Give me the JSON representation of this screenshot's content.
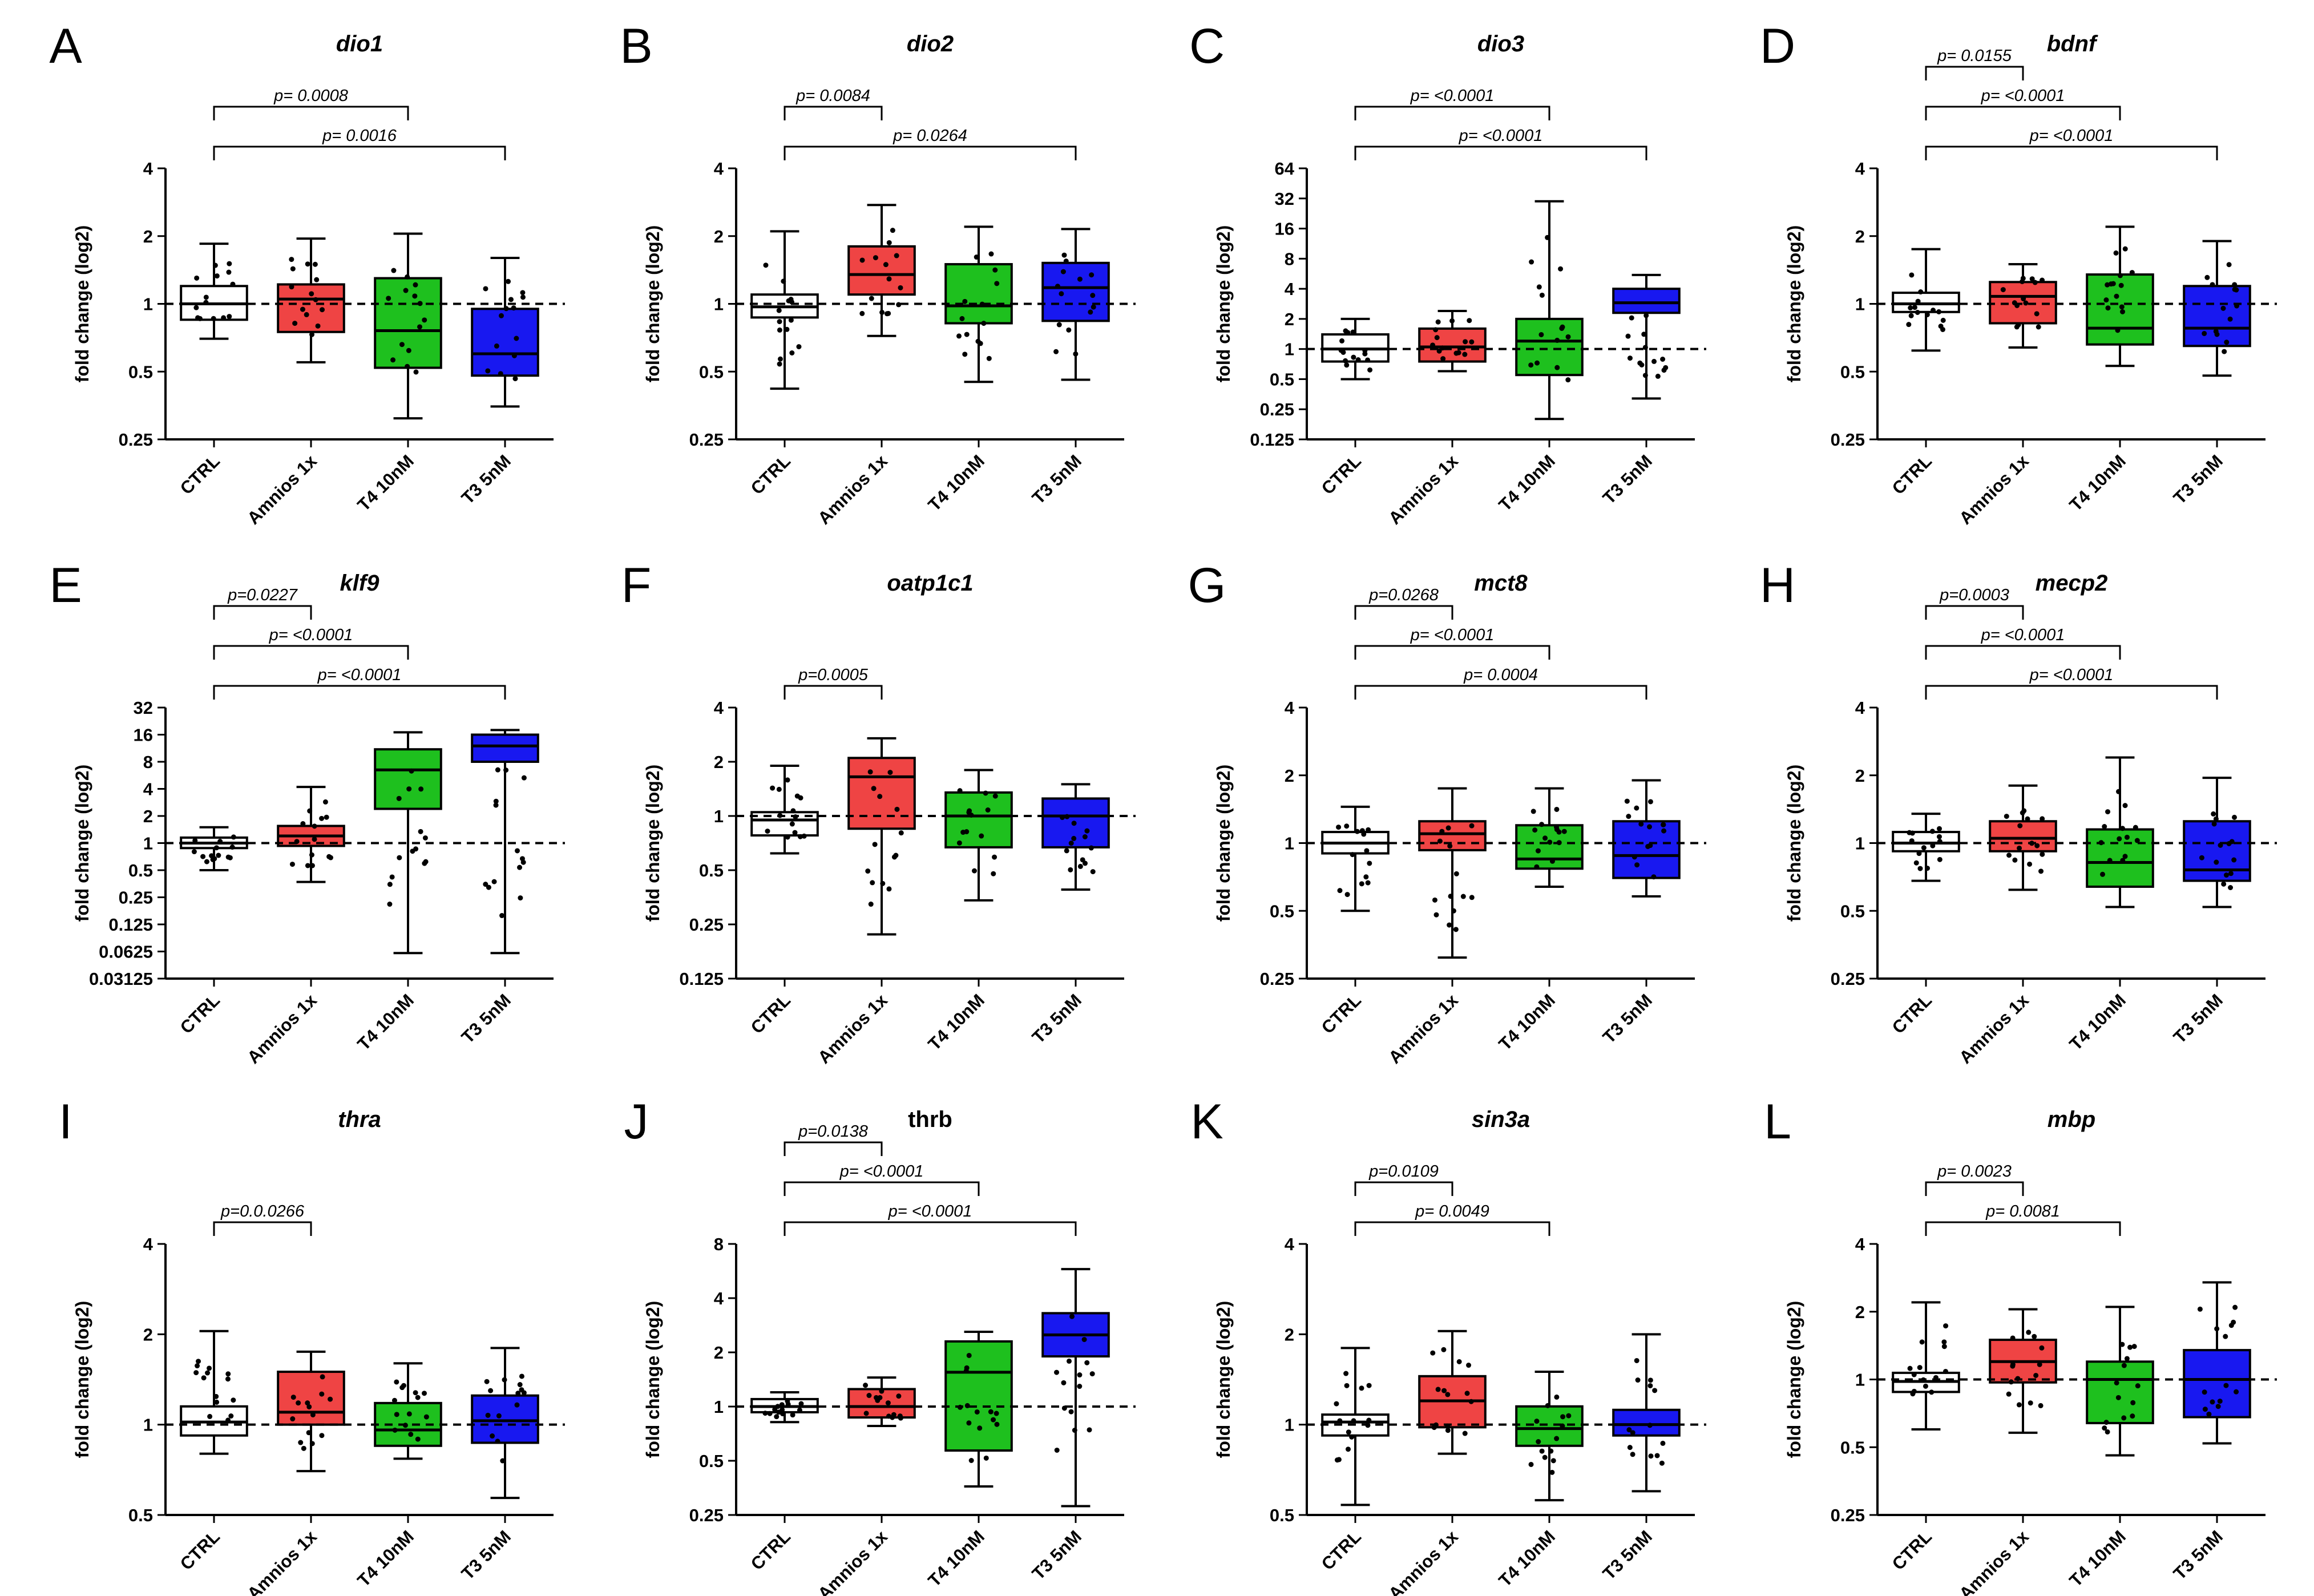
{
  "figure": {
    "groups": [
      "CTRL",
      "Amnios 1x",
      "T4 10nM",
      "T3 5nM"
    ],
    "colors": [
      "#ffffff",
      "#ef4444",
      "#1ec01e",
      "#1818f0"
    ],
    "ylabel": "fold change (log2)"
  },
  "chart_data": [
    {
      "letter": "A",
      "title": "dio1",
      "italic": true,
      "type": "box",
      "ylabel": "fold change (log2)",
      "yscale": "log2",
      "ylim": [
        0.25,
        4
      ],
      "yticks": [
        0.25,
        0.5,
        1,
        2,
        4
      ],
      "ytick_labels": [
        "0.25",
        "0.5",
        "1",
        "2",
        "4"
      ],
      "ref_line": 1,
      "boxes": [
        {
          "group": "CTRL",
          "min": 0.7,
          "q1": 0.85,
          "median": 1.0,
          "q3": 1.2,
          "max": 1.85
        },
        {
          "group": "Amnios 1x",
          "min": 0.55,
          "q1": 0.75,
          "median": 1.05,
          "q3": 1.22,
          "max": 1.95
        },
        {
          "group": "T4 10nM",
          "min": 0.31,
          "q1": 0.52,
          "median": 0.76,
          "q3": 1.3,
          "max": 2.05
        },
        {
          "group": "T3 5nM",
          "min": 0.35,
          "q1": 0.48,
          "median": 0.6,
          "q3": 0.95,
          "max": 1.6
        }
      ],
      "comparisons": [
        {
          "from": 0,
          "to": 2,
          "label": "p= 0.0008"
        },
        {
          "from": 0,
          "to": 3,
          "label": "p= 0.0016"
        }
      ]
    },
    {
      "letter": "B",
      "title": "dio2",
      "italic": true,
      "type": "box",
      "ylabel": "fold change (log2)",
      "yscale": "log2",
      "ylim": [
        0.25,
        4
      ],
      "yticks": [
        0.25,
        0.5,
        1,
        2,
        4
      ],
      "ytick_labels": [
        "0.25",
        "0.5",
        "1",
        "2",
        "4"
      ],
      "ref_line": 1,
      "boxes": [
        {
          "group": "CTRL",
          "min": 0.42,
          "q1": 0.87,
          "median": 0.97,
          "q3": 1.1,
          "max": 2.1
        },
        {
          "group": "Amnios 1x",
          "min": 0.72,
          "q1": 1.1,
          "median": 1.35,
          "q3": 1.8,
          "max": 2.75
        },
        {
          "group": "T4 10nM",
          "min": 0.45,
          "q1": 0.82,
          "median": 0.98,
          "q3": 1.5,
          "max": 2.2
        },
        {
          "group": "T3 5nM",
          "min": 0.46,
          "q1": 0.84,
          "median": 1.18,
          "q3": 1.52,
          "max": 2.15
        }
      ],
      "comparisons": [
        {
          "from": 0,
          "to": 1,
          "label": "p= 0.0084"
        },
        {
          "from": 0,
          "to": 3,
          "label": "p= 0.0264"
        }
      ]
    },
    {
      "letter": "C",
      "title": "dio3",
      "italic": true,
      "type": "box",
      "ylabel": "fold change (log2)",
      "yscale": "log2",
      "ylim": [
        0.125,
        64
      ],
      "yticks": [
        0.125,
        0.25,
        0.5,
        1,
        2,
        4,
        8,
        16,
        32,
        64
      ],
      "ytick_labels": [
        "0.125",
        "0.25",
        "0.5",
        "1",
        "2",
        "4",
        "8",
        "16",
        "32",
        "64"
      ],
      "ref_line": 1,
      "boxes": [
        {
          "group": "CTRL",
          "min": 0.5,
          "q1": 0.75,
          "median": 1.0,
          "q3": 1.4,
          "max": 2.0
        },
        {
          "group": "Amnios 1x",
          "min": 0.6,
          "q1": 0.75,
          "median": 1.05,
          "q3": 1.6,
          "max": 2.4
        },
        {
          "group": "T4 10nM",
          "min": 0.2,
          "q1": 0.55,
          "median": 1.2,
          "q3": 2.0,
          "max": 30
        },
        {
          "group": "T3 5nM",
          "min": 0.32,
          "q1": 2.3,
          "median": 2.9,
          "q3": 4.0,
          "max": 5.5
        }
      ],
      "comparisons": [
        {
          "from": 0,
          "to": 2,
          "label": "p= <0.0001"
        },
        {
          "from": 0,
          "to": 3,
          "label": "p= <0.0001"
        }
      ]
    },
    {
      "letter": "D",
      "title": "bdnf",
      "italic": true,
      "type": "box",
      "ylabel": "fold change (log2)",
      "yscale": "log2",
      "ylim": [
        0.25,
        4
      ],
      "yticks": [
        0.25,
        0.5,
        1,
        2,
        4
      ],
      "ytick_labels": [
        "0.25",
        "0.5",
        "1",
        "2",
        "4"
      ],
      "ref_line": 1,
      "boxes": [
        {
          "group": "CTRL",
          "min": 0.62,
          "q1": 0.92,
          "median": 1.0,
          "q3": 1.12,
          "max": 1.75
        },
        {
          "group": "Amnios 1x",
          "min": 0.64,
          "q1": 0.82,
          "median": 1.08,
          "q3": 1.25,
          "max": 1.5
        },
        {
          "group": "T4 10nM",
          "min": 0.53,
          "q1": 0.66,
          "median": 0.78,
          "q3": 1.35,
          "max": 2.2
        },
        {
          "group": "T3 5nM",
          "min": 0.48,
          "q1": 0.65,
          "median": 0.78,
          "q3": 1.2,
          "max": 1.9
        }
      ],
      "comparisons": [
        {
          "from": 0,
          "to": 1,
          "label": "p= 0.0155"
        },
        {
          "from": 0,
          "to": 2,
          "label": "p= <0.0001"
        },
        {
          "from": 0,
          "to": 3,
          "label": "p= <0.0001"
        }
      ]
    },
    {
      "letter": "E",
      "title": "klf9",
      "italic": true,
      "type": "box",
      "ylabel": "fold change (log2)",
      "yscale": "log2",
      "ylim": [
        0.03125,
        32
      ],
      "yticks": [
        0.03125,
        0.0625,
        0.125,
        0.25,
        0.5,
        1,
        2,
        4,
        8,
        16,
        32
      ],
      "ytick_labels": [
        "0.03125",
        "0.0625",
        "0.125",
        "0.25",
        "0.5",
        "1",
        "2",
        "4",
        "8",
        "16",
        "32"
      ],
      "ref_line": 1,
      "boxes": [
        {
          "group": "CTRL",
          "min": 0.5,
          "q1": 0.88,
          "median": 1.0,
          "q3": 1.15,
          "max": 1.5
        },
        {
          "group": "Amnios 1x",
          "min": 0.37,
          "q1": 0.93,
          "median": 1.2,
          "q3": 1.55,
          "max": 4.2
        },
        {
          "group": "T4 10nM",
          "min": 0.06,
          "q1": 2.4,
          "median": 6.5,
          "q3": 11,
          "max": 17
        },
        {
          "group": "T3 5nM",
          "min": 0.06,
          "q1": 8.0,
          "median": 12,
          "q3": 16,
          "max": 18
        }
      ],
      "comparisons": [
        {
          "from": 0,
          "to": 1,
          "label": "p=0.0227"
        },
        {
          "from": 0,
          "to": 2,
          "label": "p= <0.0001"
        },
        {
          "from": 0,
          "to": 3,
          "label": "p= <0.0001"
        }
      ]
    },
    {
      "letter": "F",
      "title": "oatp1c1",
      "italic": true,
      "type": "box",
      "ylabel": "fold change (log2)",
      "yscale": "log2",
      "ylim": [
        0.125,
        4
      ],
      "yticks": [
        0.125,
        0.25,
        0.5,
        1,
        2,
        4
      ],
      "ytick_labels": [
        "0.125",
        "0.25",
        "0.5",
        "1",
        "2",
        "4"
      ],
      "ref_line": 1,
      "boxes": [
        {
          "group": "CTRL",
          "min": 0.62,
          "q1": 0.78,
          "median": 0.95,
          "q3": 1.05,
          "max": 1.9
        },
        {
          "group": "Amnios 1x",
          "min": 0.22,
          "q1": 0.85,
          "median": 1.65,
          "q3": 2.1,
          "max": 2.7
        },
        {
          "group": "T4 10nM",
          "min": 0.34,
          "q1": 0.67,
          "median": 1.0,
          "q3": 1.35,
          "max": 1.8
        },
        {
          "group": "T3 5nM",
          "min": 0.39,
          "q1": 0.67,
          "median": 1.0,
          "q3": 1.25,
          "max": 1.5
        }
      ],
      "comparisons": [
        {
          "from": 0,
          "to": 1,
          "label": "p=0.0005"
        }
      ]
    },
    {
      "letter": "G",
      "title": "mct8",
      "italic": true,
      "type": "box",
      "ylabel": "fold change (log2)",
      "yscale": "log2",
      "ylim": [
        0.25,
        4
      ],
      "yticks": [
        0.25,
        0.5,
        1,
        2,
        4
      ],
      "ytick_labels": [
        "0.25",
        "0.5",
        "1",
        "2",
        "4"
      ],
      "ref_line": 1,
      "boxes": [
        {
          "group": "CTRL",
          "min": 0.5,
          "q1": 0.9,
          "median": 1.0,
          "q3": 1.12,
          "max": 1.45
        },
        {
          "group": "Amnios 1x",
          "min": 0.31,
          "q1": 0.93,
          "median": 1.1,
          "q3": 1.25,
          "max": 1.75
        },
        {
          "group": "T4 10nM",
          "min": 0.64,
          "q1": 0.77,
          "median": 0.85,
          "q3": 1.2,
          "max": 1.75
        },
        {
          "group": "T3 5nM",
          "min": 0.58,
          "q1": 0.7,
          "median": 0.88,
          "q3": 1.25,
          "max": 1.9
        }
      ],
      "comparisons": [
        {
          "from": 0,
          "to": 1,
          "label": "p=0.0268"
        },
        {
          "from": 0,
          "to": 2,
          "label": "p= <0.0001"
        },
        {
          "from": 0,
          "to": 3,
          "label": "p= 0.0004"
        }
      ]
    },
    {
      "letter": "H",
      "title": "mecp2",
      "italic": true,
      "type": "box",
      "ylabel": "fold change (log2)",
      "yscale": "log2",
      "ylim": [
        0.25,
        4
      ],
      "yticks": [
        0.25,
        0.5,
        1,
        2,
        4
      ],
      "ytick_labels": [
        "0.25",
        "0.5",
        "1",
        "2",
        "4"
      ],
      "ref_line": 1,
      "boxes": [
        {
          "group": "CTRL",
          "min": 0.68,
          "q1": 0.92,
          "median": 1.0,
          "q3": 1.12,
          "max": 1.35
        },
        {
          "group": "Amnios 1x",
          "min": 0.62,
          "q1": 0.92,
          "median": 1.05,
          "q3": 1.25,
          "max": 1.8
        },
        {
          "group": "T4 10nM",
          "min": 0.52,
          "q1": 0.64,
          "median": 0.82,
          "q3": 1.15,
          "max": 2.4
        },
        {
          "group": "T3 5nM",
          "min": 0.52,
          "q1": 0.68,
          "median": 0.76,
          "q3": 1.25,
          "max": 1.95
        }
      ],
      "comparisons": [
        {
          "from": 0,
          "to": 1,
          "label": "p=0.0003"
        },
        {
          "from": 0,
          "to": 2,
          "label": "p= <0.0001"
        },
        {
          "from": 0,
          "to": 3,
          "label": "p= <0.0001"
        }
      ]
    },
    {
      "letter": "I",
      "title": "thra",
      "italic": true,
      "type": "box",
      "ylabel": "fold change (log2)",
      "yscale": "log2",
      "ylim": [
        0.5,
        4
      ],
      "yticks": [
        0.5,
        1,
        2,
        4
      ],
      "ytick_labels": [
        "0.5",
        "1",
        "2",
        "4"
      ],
      "ref_line": 1,
      "boxes": [
        {
          "group": "CTRL",
          "min": 0.8,
          "q1": 0.92,
          "median": 1.02,
          "q3": 1.15,
          "max": 2.05
        },
        {
          "group": "Amnios 1x",
          "min": 0.7,
          "q1": 1.0,
          "median": 1.1,
          "q3": 1.5,
          "max": 1.75
        },
        {
          "group": "T4 10nM",
          "min": 0.77,
          "q1": 0.85,
          "median": 0.96,
          "q3": 1.18,
          "max": 1.6
        },
        {
          "group": "T3 5nM",
          "min": 0.57,
          "q1": 0.87,
          "median": 1.03,
          "q3": 1.25,
          "max": 1.8
        }
      ],
      "comparisons": [
        {
          "from": 0,
          "to": 1,
          "label": "p=0.0.0266"
        }
      ]
    },
    {
      "letter": "J",
      "title": "thrb",
      "italic": false,
      "type": "box",
      "ylabel": "fold change (log2)",
      "yscale": "log2",
      "ylim": [
        0.25,
        8
      ],
      "yticks": [
        0.25,
        0.5,
        1,
        2,
        4,
        8
      ],
      "ytick_labels": [
        "0.25",
        "0.5",
        "1",
        "2",
        "4",
        "8"
      ],
      "ref_line": 1,
      "boxes": [
        {
          "group": "CTRL",
          "min": 0.82,
          "q1": 0.93,
          "median": 1.0,
          "q3": 1.1,
          "max": 1.2
        },
        {
          "group": "Amnios 1x",
          "min": 0.78,
          "q1": 0.87,
          "median": 1.0,
          "q3": 1.25,
          "max": 1.45
        },
        {
          "group": "T4 10nM",
          "min": 0.36,
          "q1": 0.57,
          "median": 1.55,
          "q3": 2.3,
          "max": 2.6
        },
        {
          "group": "T3 5nM",
          "min": 0.28,
          "q1": 1.9,
          "median": 2.5,
          "q3": 3.3,
          "max": 5.8
        }
      ],
      "comparisons": [
        {
          "from": 0,
          "to": 1,
          "label": "p=0.0138"
        },
        {
          "from": 0,
          "to": 2,
          "label": "p= <0.0001"
        },
        {
          "from": 0,
          "to": 3,
          "label": "p= <0.0001"
        }
      ]
    },
    {
      "letter": "K",
      "title": "sin3a",
      "italic": true,
      "type": "box",
      "ylabel": "fold change (log2)",
      "yscale": "log2",
      "ylim": [
        0.5,
        4
      ],
      "yticks": [
        0.5,
        1,
        2,
        4
      ],
      "ytick_labels": [
        "0.5",
        "1",
        "2",
        "4"
      ],
      "ref_line": 1,
      "boxes": [
        {
          "group": "CTRL",
          "min": 0.54,
          "q1": 0.92,
          "median": 1.02,
          "q3": 1.08,
          "max": 1.8
        },
        {
          "group": "Amnios 1x",
          "min": 0.8,
          "q1": 0.98,
          "median": 1.2,
          "q3": 1.45,
          "max": 2.05
        },
        {
          "group": "T4 10nM",
          "min": 0.56,
          "q1": 0.85,
          "median": 0.97,
          "q3": 1.15,
          "max": 1.5
        },
        {
          "group": "T3 5nM",
          "min": 0.6,
          "q1": 0.92,
          "median": 1.0,
          "q3": 1.12,
          "max": 2.0
        }
      ],
      "comparisons": [
        {
          "from": 0,
          "to": 1,
          "label": "p=0.0109"
        },
        {
          "from": 0,
          "to": 2,
          "label": "p= 0.0049"
        }
      ]
    },
    {
      "letter": "L",
      "title": "mbp",
      "italic": true,
      "type": "box",
      "ylabel": "fold change (log2)",
      "yscale": "log2",
      "ylim": [
        0.25,
        4
      ],
      "yticks": [
        0.25,
        0.5,
        1,
        2,
        4
      ],
      "ytick_labels": [
        "0.25",
        "0.5",
        "1",
        "2",
        "4"
      ],
      "ref_line": 1,
      "boxes": [
        {
          "group": "CTRL",
          "min": 0.6,
          "q1": 0.88,
          "median": 0.98,
          "q3": 1.07,
          "max": 2.2
        },
        {
          "group": "Amnios 1x",
          "min": 0.58,
          "q1": 0.97,
          "median": 1.2,
          "q3": 1.5,
          "max": 2.05
        },
        {
          "group": "T4 10nM",
          "min": 0.46,
          "q1": 0.64,
          "median": 1.0,
          "q3": 1.2,
          "max": 2.1
        },
        {
          "group": "T3 5nM",
          "min": 0.52,
          "q1": 0.68,
          "median": 1.0,
          "q3": 1.35,
          "max": 2.7
        }
      ],
      "comparisons": [
        {
          "from": 0,
          "to": 1,
          "label": "p= 0.0023"
        },
        {
          "from": 0,
          "to": 2,
          "label": "p= 0.0081"
        }
      ]
    }
  ]
}
